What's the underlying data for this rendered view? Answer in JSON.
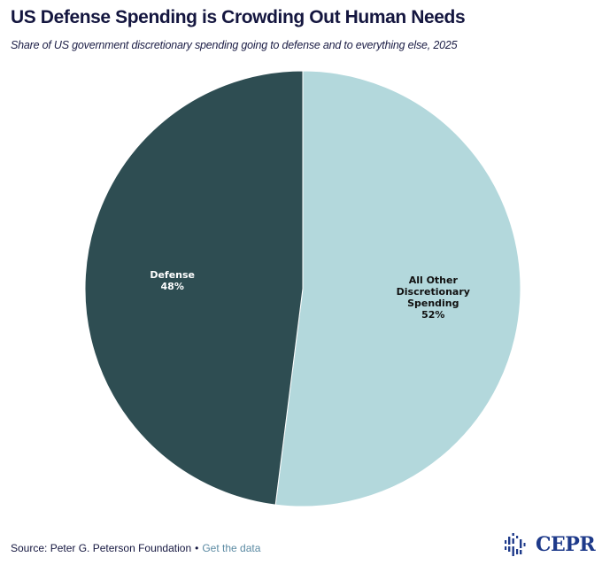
{
  "chart_data": {
    "type": "pie",
    "title": "US Defense Spending is Crowding Out Human Needs",
    "subtitle": "Share of US government discretionary spending going to defense and to everything else, 2025",
    "slices": [
      {
        "label_lines": [
          "All Other",
          "Discretionary",
          "Spending"
        ],
        "value": 52,
        "value_label": "52%",
        "color": "#b3d8dc",
        "text_color": "#111111"
      },
      {
        "label_lines": [
          "Defense"
        ],
        "value": 48,
        "value_label": "48%",
        "color": "#2e4d52",
        "text_color": "#ffffff"
      }
    ],
    "start_angle": "12 o'clock",
    "direction": "clockwise",
    "legend": "none"
  },
  "footer": {
    "source": "Source: Peter G. Peterson Foundation",
    "separator": "•",
    "link_label": "Get the data"
  },
  "logo": {
    "text": "CEPR",
    "color": "#1e3a8a"
  }
}
